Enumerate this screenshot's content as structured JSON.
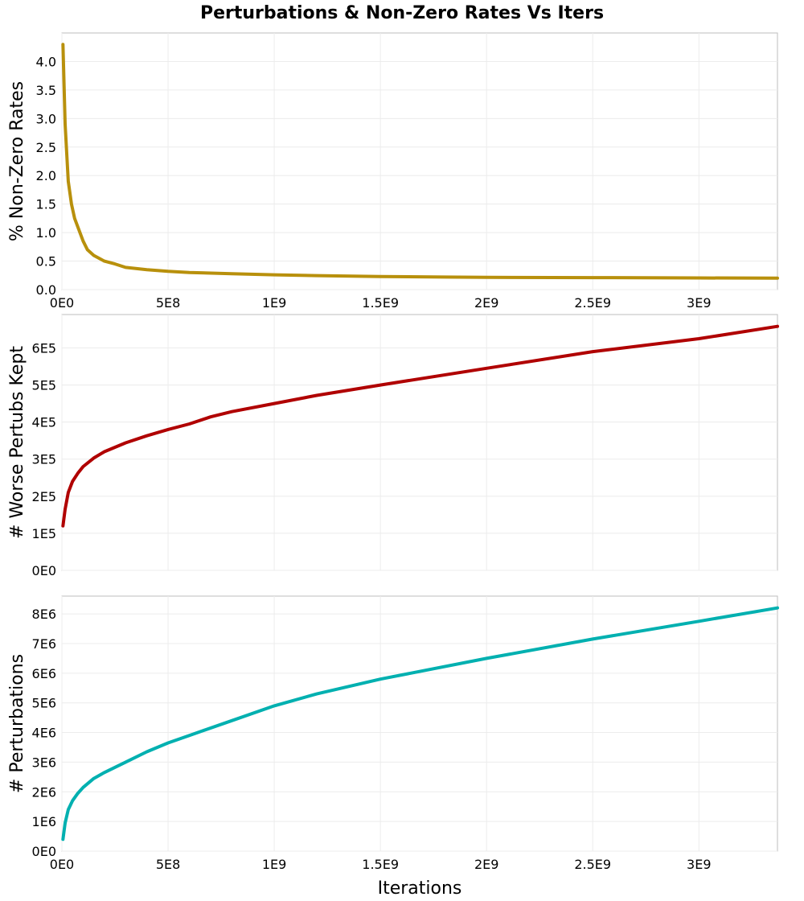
{
  "chart_title": "Perturbations & Non-Zero Rates Vs Iters",
  "chart_data": [
    {
      "type": "line",
      "title": "",
      "xlabel": "",
      "ylabel": "% Non-Zero Rates",
      "xlim": [
        0,
        3370000000
      ],
      "ylim": [
        0,
        4.5
      ],
      "grid": true,
      "x_ticks": [
        {
          "value": 0,
          "label": "0E0"
        },
        {
          "value": 500000000,
          "label": "5E8"
        },
        {
          "value": 1000000000,
          "label": "1E9"
        },
        {
          "value": 1500000000,
          "label": "1.5E9"
        },
        {
          "value": 2000000000,
          "label": "2E9"
        },
        {
          "value": 2500000000,
          "label": "2.5E9"
        },
        {
          "value": 3000000000,
          "label": "3E9"
        }
      ],
      "y_ticks": [
        {
          "value": 0,
          "label": "0.0"
        },
        {
          "value": 0.5,
          "label": "0.5"
        },
        {
          "value": 1.0,
          "label": "1.0"
        },
        {
          "value": 1.5,
          "label": "1.5"
        },
        {
          "value": 2.0,
          "label": "2.0"
        },
        {
          "value": 2.5,
          "label": "2.5"
        },
        {
          "value": 3.0,
          "label": "3.0"
        },
        {
          "value": 3.5,
          "label": "3.5"
        },
        {
          "value": 4.0,
          "label": "4.0"
        }
      ],
      "series": [
        {
          "color": "#b8900c",
          "points": [
            [
              5000000,
              4.3
            ],
            [
              15000000,
              2.9
            ],
            [
              30000000,
              1.9
            ],
            [
              45000000,
              1.5
            ],
            [
              60000000,
              1.25
            ],
            [
              80000000,
              1.05
            ],
            [
              100000000,
              0.85
            ],
            [
              120000000,
              0.7
            ],
            [
              150000000,
              0.6
            ],
            [
              200000000,
              0.5
            ],
            [
              250000000,
              0.45
            ],
            [
              300000000,
              0.39
            ],
            [
              400000000,
              0.35
            ],
            [
              500000000,
              0.32
            ],
            [
              600000000,
              0.3
            ],
            [
              800000000,
              0.28
            ],
            [
              1000000000,
              0.26
            ],
            [
              1200000000,
              0.245
            ],
            [
              1500000000,
              0.23
            ],
            [
              1800000000,
              0.22
            ],
            [
              2000000000,
              0.215
            ],
            [
              2500000000,
              0.21
            ],
            [
              3000000000,
              0.205
            ],
            [
              3370000000,
              0.2
            ]
          ]
        }
      ]
    },
    {
      "type": "line",
      "title": "",
      "xlabel": "",
      "ylabel": "# Worse Pertubs Kept",
      "xlim": [
        0,
        3370000000
      ],
      "ylim": [
        0,
        690000
      ],
      "grid": true,
      "x_ticks": [
        {
          "value": 0,
          "label": ""
        },
        {
          "value": 500000000,
          "label": ""
        },
        {
          "value": 1000000000,
          "label": ""
        },
        {
          "value": 1500000000,
          "label": ""
        },
        {
          "value": 2000000000,
          "label": ""
        },
        {
          "value": 2500000000,
          "label": ""
        },
        {
          "value": 3000000000,
          "label": ""
        }
      ],
      "y_ticks": [
        {
          "value": 0,
          "label": "0E0"
        },
        {
          "value": 100000,
          "label": "1E5"
        },
        {
          "value": 200000,
          "label": "2E5"
        },
        {
          "value": 300000,
          "label": "3E5"
        },
        {
          "value": 400000,
          "label": "4E5"
        },
        {
          "value": 500000,
          "label": "5E5"
        },
        {
          "value": 600000,
          "label": "6E5"
        }
      ],
      "series": [
        {
          "color": "#b00000",
          "points": [
            [
              5000000,
              120000
            ],
            [
              15000000,
              165000
            ],
            [
              30000000,
              210000
            ],
            [
              50000000,
              240000
            ],
            [
              75000000,
              262000
            ],
            [
              100000000,
              280000
            ],
            [
              150000000,
              303000
            ],
            [
              200000000,
              320000
            ],
            [
              300000000,
              344000
            ],
            [
              400000000,
              363000
            ],
            [
              500000000,
              380000
            ],
            [
              600000000,
              395000
            ],
            [
              700000000,
              414000
            ],
            [
              800000000,
              428000
            ],
            [
              1000000000,
              450000
            ],
            [
              1200000000,
              472000
            ],
            [
              1500000000,
              500000
            ],
            [
              2000000000,
              545000
            ],
            [
              2500000000,
              590000
            ],
            [
              3000000000,
              625000
            ],
            [
              3370000000,
              658000
            ]
          ]
        }
      ]
    },
    {
      "type": "line",
      "title": "",
      "xlabel": "Iterations",
      "ylabel": "# Perturbations",
      "xlim": [
        0,
        3370000000
      ],
      "ylim": [
        0,
        8600000
      ],
      "grid": true,
      "x_ticks": [
        {
          "value": 0,
          "label": "0E0"
        },
        {
          "value": 500000000,
          "label": "5E8"
        },
        {
          "value": 1000000000,
          "label": "1E9"
        },
        {
          "value": 1500000000,
          "label": "1.5E9"
        },
        {
          "value": 2000000000,
          "label": "2E9"
        },
        {
          "value": 2500000000,
          "label": "2.5E9"
        },
        {
          "value": 3000000000,
          "label": "3E9"
        }
      ],
      "y_ticks": [
        {
          "value": 0,
          "label": "0E0"
        },
        {
          "value": 1000000,
          "label": "1E6"
        },
        {
          "value": 2000000,
          "label": "2E6"
        },
        {
          "value": 3000000,
          "label": "3E6"
        },
        {
          "value": 4000000,
          "label": "4E6"
        },
        {
          "value": 5000000,
          "label": "5E6"
        },
        {
          "value": 6000000,
          "label": "6E6"
        },
        {
          "value": 7000000,
          "label": "7E6"
        },
        {
          "value": 8000000,
          "label": "8E6"
        }
      ],
      "series": [
        {
          "color": "#00b0b0",
          "points": [
            [
              5000000,
              400000
            ],
            [
              15000000,
              950000
            ],
            [
              30000000,
              1400000
            ],
            [
              50000000,
              1700000
            ],
            [
              75000000,
              1950000
            ],
            [
              100000000,
              2150000
            ],
            [
              150000000,
              2450000
            ],
            [
              200000000,
              2650000
            ],
            [
              300000000,
              3000000
            ],
            [
              400000000,
              3350000
            ],
            [
              500000000,
              3650000
            ],
            [
              600000000,
              3900000
            ],
            [
              800000000,
              4400000
            ],
            [
              1000000000,
              4900000
            ],
            [
              1200000000,
              5300000
            ],
            [
              1500000000,
              5800000
            ],
            [
              2000000000,
              6500000
            ],
            [
              2500000000,
              7150000
            ],
            [
              3000000000,
              7750000
            ],
            [
              3370000000,
              8200000
            ]
          ]
        }
      ]
    }
  ]
}
